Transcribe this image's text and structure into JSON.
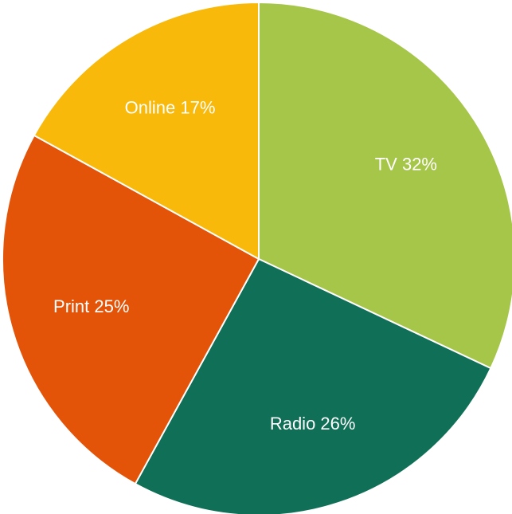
{
  "chart_data": {
    "type": "pie",
    "slices": [
      {
        "label": "TV",
        "value": 32,
        "text": "TV 32%",
        "color": "#a6c64a"
      },
      {
        "label": "Radio",
        "value": 26,
        "text": "Radio 26%",
        "color": "#0f6f57"
      },
      {
        "label": "Print",
        "value": 25,
        "text": "Print 25%",
        "color": "#e35408"
      },
      {
        "label": "Online",
        "value": 17,
        "text": "Online 17%",
        "color": "#f9b90a"
      }
    ]
  }
}
